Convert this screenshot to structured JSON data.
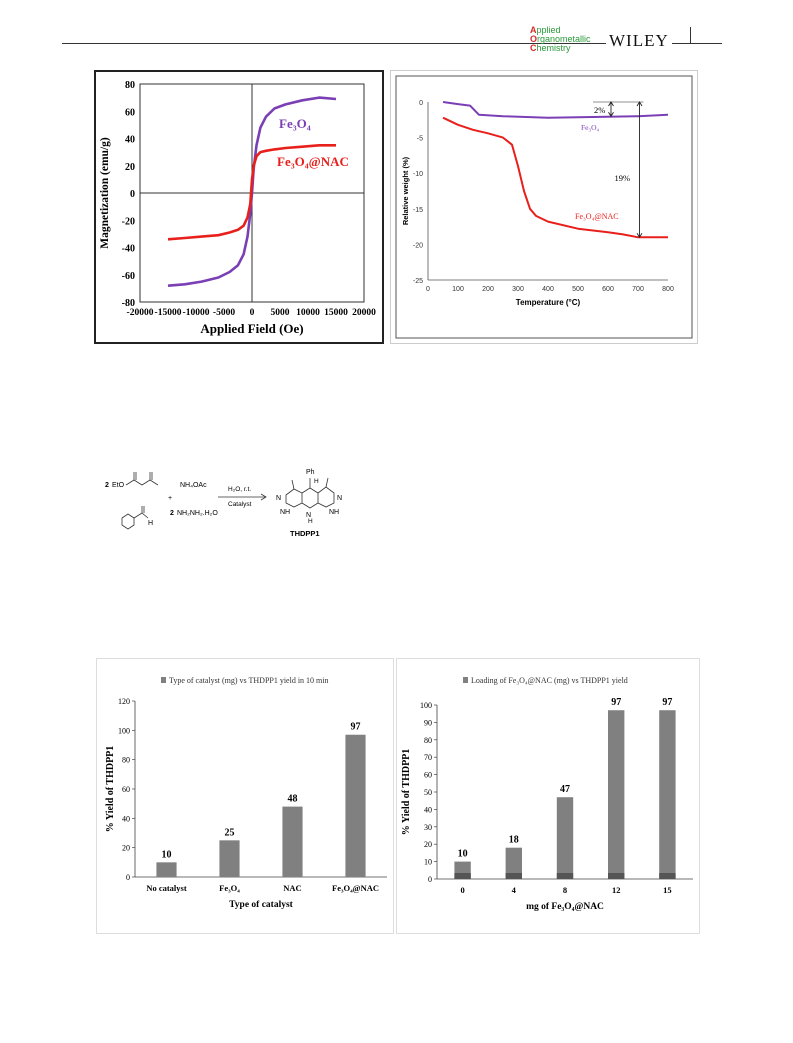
{
  "header": {
    "journal_lines": [
      "Applied",
      "Organometallic",
      "Chemistry"
    ],
    "journal_initials": [
      "A",
      "O",
      "C"
    ],
    "journal_rest": [
      "pplied",
      "rganometallic",
      "hemistry"
    ],
    "publisher": "WILEY"
  },
  "figures": {
    "magnetization": {
      "xlabel": "Applied  Field (Oe)",
      "ylabel": "Magnetization (emu/g)",
      "xticks": [
        "-20000",
        "-15000",
        "-10000",
        "-5000",
        "0",
        "5000",
        "10000",
        "15000",
        "20000"
      ],
      "yticks": [
        "80",
        "60",
        "40",
        "20",
        "0",
        "-20",
        "-40",
        "-60",
        "-80"
      ],
      "series_labels": [
        "Fe₃O₄",
        "Fe₃O₄@NAC"
      ],
      "colors": [
        "#7b3fb5",
        "#e8201c"
      ]
    },
    "tga": {
      "xlabel": "Temperature (°C)",
      "ylabel": "Relative weight (%)",
      "xticks": [
        "0",
        "100",
        "200",
        "300",
        "400",
        "500",
        "600",
        "700",
        "800"
      ],
      "yticks": [
        "0",
        "-5",
        "-10",
        "-15",
        "-20",
        "-25"
      ],
      "series_labels": [
        "Fe₃O₄",
        "Fe₃O₄@NAC"
      ],
      "annotations": [
        "2%",
        "19%"
      ],
      "colors": [
        "#7b3fb5",
        "#e8201c"
      ]
    },
    "scheme": {
      "reagent_count_1": "2",
      "reagent_1": "EtO",
      "reagent_2": "NH₄OAc",
      "plus": "+",
      "reagent_count_3": "2",
      "reagent_3": "NH₂NH₂.H₂O",
      "aldehyde_h": "H",
      "conditions_top": "H₂O, r.t.",
      "conditions_bottom": "Catalyst",
      "substituent": "Ph",
      "product_h": "H",
      "product_n1": "N",
      "product_nh1": "NH",
      "product_nh2": "N",
      "product_nh3": "NH",
      "product_n4": "N",
      "product_h2": "H",
      "product": "THDPP1"
    }
  },
  "chart_data": [
    {
      "type": "line",
      "title": "",
      "xlabel": "Applied  Field (Oe)",
      "ylabel": "Magnetization (emu/g)",
      "xlim": [
        -20000,
        20000
      ],
      "ylim": [
        -80,
        80
      ],
      "grid": false,
      "series": [
        {
          "name": "Fe₃O₄",
          "x": [
            -15000,
            -12000,
            -9000,
            -6000,
            -4000,
            -2500,
            -1500,
            -800,
            -300,
            0,
            300,
            800,
            1500,
            2500,
            4000,
            6000,
            9000,
            12000,
            15000
          ],
          "y": [
            -68,
            -67,
            -65,
            -62,
            -58,
            -53,
            -45,
            -32,
            -15,
            0,
            18,
            35,
            48,
            56,
            62,
            65,
            68,
            70,
            69
          ]
        },
        {
          "name": "Fe₃O₄@NAC",
          "x": [
            -15000,
            -12000,
            -9000,
            -6000,
            -4000,
            -2500,
            -1500,
            -800,
            -300,
            0,
            300,
            800,
            1500,
            2500,
            4000,
            6000,
            9000,
            12000,
            15000
          ],
          "y": [
            -34,
            -33,
            -32,
            -31,
            -29,
            -27,
            -24,
            -18,
            -8,
            10,
            20,
            27,
            30,
            31,
            32,
            33,
            34,
            35,
            35
          ]
        }
      ]
    },
    {
      "type": "line",
      "title": "",
      "xlabel": "Temperature (°C)",
      "ylabel": "Relative weight (%)",
      "xlim": [
        0,
        800
      ],
      "ylim": [
        -25,
        0
      ],
      "grid": false,
      "series": [
        {
          "name": "Fe₃O₄",
          "x": [
            50,
            100,
            140,
            170,
            250,
            400,
            550,
            700,
            800
          ],
          "y": [
            0,
            -0.3,
            -0.5,
            -1.8,
            -2.0,
            -2.2,
            -2.1,
            -2.0,
            -1.8
          ]
        },
        {
          "name": "Fe₃O₄@NAC",
          "x": [
            50,
            100,
            150,
            200,
            250,
            280,
            300,
            320,
            340,
            360,
            400,
            500,
            600,
            650,
            700,
            800
          ],
          "y": [
            -2.2,
            -3.2,
            -3.9,
            -4.4,
            -5.0,
            -6.0,
            -9.0,
            -12.5,
            -15.0,
            -16.0,
            -16.8,
            -17.8,
            -18.3,
            -18.6,
            -19.0,
            -19.0
          ]
        }
      ]
    },
    {
      "type": "bar",
      "title": "Type of catalyst (mg) vs THDPP1 yield in 10 min",
      "xlabel": "Type of catalyst",
      "ylabel": "% Yield of THDPP1",
      "categories": [
        "No catalyst",
        "Fe₃O₄",
        "NAC",
        "Fe₃O₄@NAC"
      ],
      "values": [
        10,
        25,
        48,
        97
      ],
      "yticks": [
        "0",
        "20",
        "40",
        "60",
        "80",
        "100",
        "120"
      ],
      "ylim": [
        0,
        120
      ],
      "legend": "top",
      "bar_color": "#808080"
    },
    {
      "type": "bar",
      "title": "Loading of Fe₃O₄@NAC (mg) vs THDPP1 yield",
      "xlabel": "mg of Fe₃O₄@NAC",
      "ylabel": "% Yield of THDPP1",
      "categories": [
        "0",
        "4",
        "8",
        "12",
        "15"
      ],
      "values": [
        10,
        18,
        47,
        97,
        97
      ],
      "yticks": [
        "0",
        "10",
        "20",
        "30",
        "40",
        "50",
        "60",
        "70",
        "80",
        "90",
        "100"
      ],
      "ylim": [
        0,
        100
      ],
      "legend": "top",
      "bar_color": "#808080"
    }
  ]
}
